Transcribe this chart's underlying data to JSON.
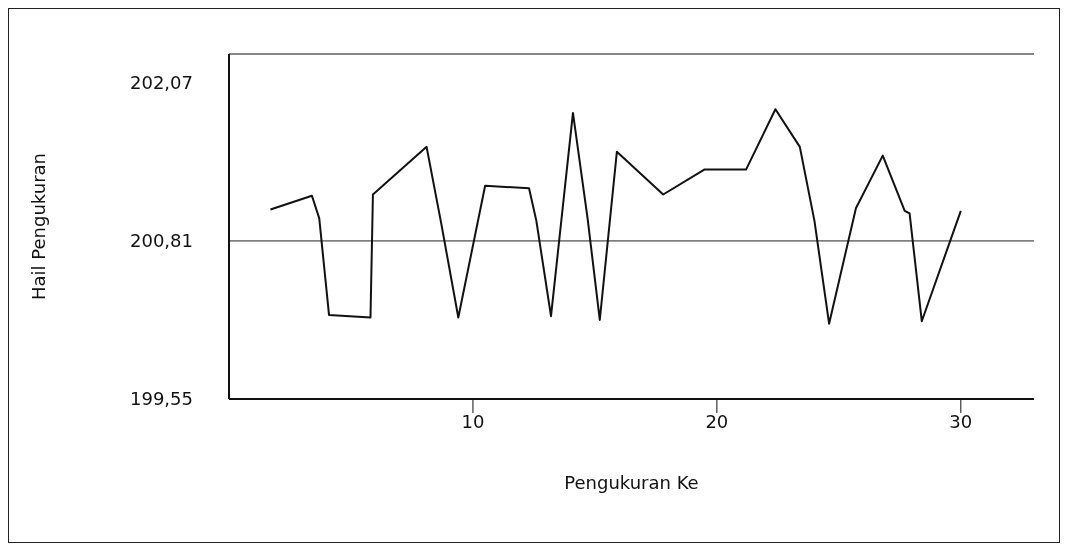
{
  "chart_data": {
    "type": "line",
    "xlabel": "Pengukuran Ke",
    "ylabel": "Hail Pengukuran",
    "x": [
      1.7,
      3.4,
      3.7,
      4.1,
      5.8,
      5.9,
      8.1,
      8.7,
      9.4,
      10.5,
      12.3,
      12.6,
      13.2,
      14.1,
      14.7,
      15.2,
      15.9,
      17.8,
      19.5,
      21.2,
      22.4,
      23.4,
      24.0,
      24.6,
      25.7,
      26.8,
      27.7,
      27.9,
      28.4,
      30.0
    ],
    "series": [
      {
        "color": "#111111",
        "values": [
          201.06,
          201.17,
          200.99,
          200.22,
          200.2,
          201.18,
          201.56,
          200.95,
          200.2,
          201.25,
          201.23,
          200.97,
          200.21,
          201.83,
          200.99,
          200.18,
          201.52,
          201.18,
          201.38,
          201.38,
          201.86,
          201.56,
          200.97,
          200.15,
          201.07,
          201.49,
          201.05,
          201.03,
          200.17,
          201.05
        ]
      }
    ],
    "xlim": [
      0,
      33
    ],
    "xticks": [
      10,
      20,
      30
    ],
    "ylim": [
      199.55,
      202.3
    ],
    "yticks": [
      {
        "value": 199.55,
        "label": "199,55"
      },
      {
        "value": 200.81,
        "label": "200,81"
      },
      {
        "value": 202.07,
        "label": "202,07"
      }
    ],
    "ref_lines": [
      {
        "axis": "y",
        "value": 200.81,
        "color": "#222222"
      }
    ],
    "grid": false,
    "legend": false,
    "marker": "none",
    "line_style": "solid"
  }
}
